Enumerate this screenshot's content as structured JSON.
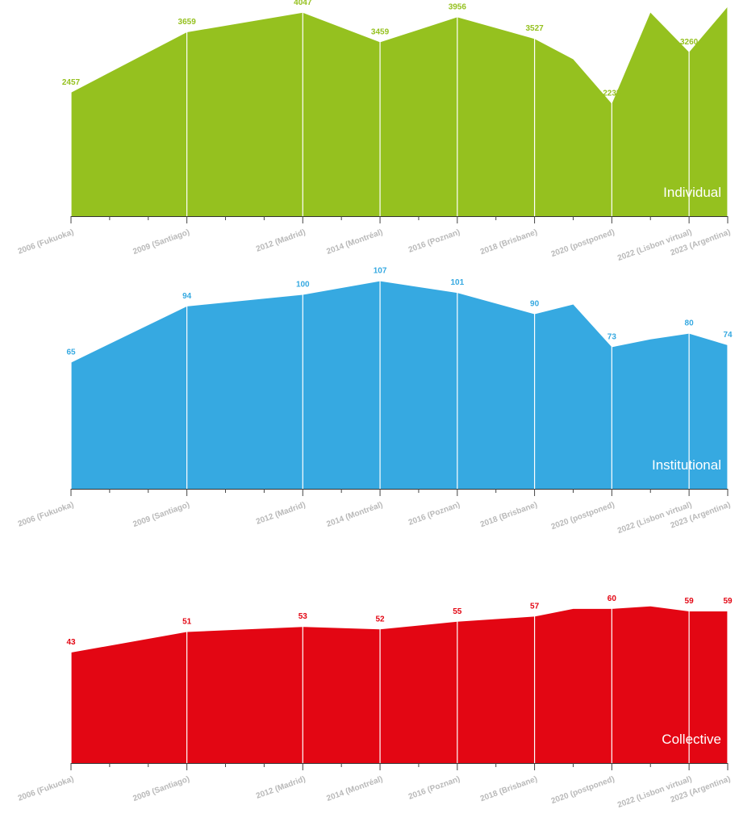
{
  "chart_data": [
    {
      "type": "area",
      "title": "Individual",
      "color": "#95c11f",
      "categories": [
        "2006 (Fukuoka)",
        "2009 (Santiago)",
        "2012 (Madrid)",
        "2014 (Montréal)",
        "2016 (Poznan)",
        "2018 (Brisbane)",
        "2020 (postponed)",
        "2022 (Lisbon virtual)",
        "2023 (Argentina)"
      ],
      "x": [
        2006,
        2007,
        2008,
        2009,
        2010,
        2011,
        2012,
        2013,
        2014,
        2015,
        2016,
        2017,
        2018,
        2019,
        2020,
        2021,
        2022,
        2023
      ],
      "values": [
        2457,
        null,
        null,
        3659,
        null,
        null,
        4047,
        null,
        3459,
        null,
        3956,
        null,
        3527,
        3120,
        2235,
        4050,
        3260,
        4165
      ],
      "labels": [
        "2457",
        "",
        "",
        "3659",
        "",
        "",
        "4047",
        "",
        "3459",
        "",
        "3956",
        "",
        "3527",
        "",
        "2235",
        "",
        "3260",
        "4165"
      ],
      "ylim": [
        0,
        4300
      ]
    },
    {
      "type": "area",
      "title": "Institutional",
      "color": "#36a9e1",
      "categories": [
        "2006 (Fukuoka)",
        "2009 (Santiago)",
        "2012 (Madrid)",
        "2014 (Montréal)",
        "2016 (Poznan)",
        "2018 (Brisbane)",
        "2020 (postponed)",
        "2022 (Lisbon virtual)",
        "2023 (Argentina)"
      ],
      "x": [
        2006,
        2007,
        2008,
        2009,
        2010,
        2011,
        2012,
        2013,
        2014,
        2015,
        2016,
        2017,
        2018,
        2019,
        2020,
        2021,
        2022,
        2023
      ],
      "values": [
        65,
        null,
        null,
        94,
        null,
        null,
        100,
        null,
        107,
        null,
        101,
        null,
        90,
        95,
        73,
        77,
        80,
        74
      ],
      "labels": [
        "65",
        "",
        "",
        "94",
        "",
        "",
        "100",
        "",
        "107",
        "",
        "101",
        "",
        "90",
        "",
        "73",
        "",
        "80",
        "74"
      ],
      "ylim": [
        0,
        111
      ]
    },
    {
      "type": "area",
      "title": "Collective",
      "color": "#e30613",
      "categories": [
        "2006 (Fukuoka)",
        "2009 (Santiago)",
        "2012 (Madrid)",
        "2014 (Montréal)",
        "2016 (Poznan)",
        "2018 (Brisbane)",
        "2020 (postponed)",
        "2022 (Lisbon virtual)",
        "2023 (Argentina)"
      ],
      "x": [
        2006,
        2007,
        2008,
        2009,
        2010,
        2011,
        2012,
        2013,
        2014,
        2015,
        2016,
        2017,
        2018,
        2019,
        2020,
        2021,
        2022,
        2023
      ],
      "values": [
        43,
        null,
        null,
        51,
        null,
        null,
        53,
        null,
        52,
        null,
        55,
        null,
        57,
        60,
        60,
        61,
        59,
        59
      ],
      "labels": [
        "43",
        "",
        "",
        "51",
        "",
        "",
        "53",
        "",
        "52",
        "",
        "55",
        "",
        "57",
        "",
        "60",
        "",
        "59",
        "59"
      ],
      "ylim": [
        0,
        70
      ]
    }
  ]
}
